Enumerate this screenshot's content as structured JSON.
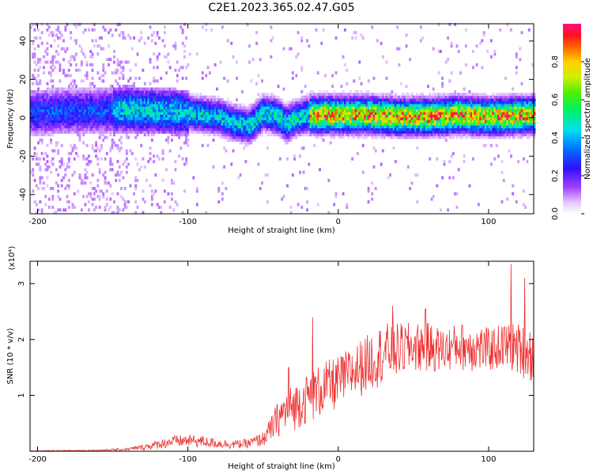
{
  "title": "C2E1.2023.365.02.47.G05",
  "chart_data": [
    {
      "type": "heatmap",
      "xlabel": "Height of straight line (km)",
      "ylabel": "Frequency (Hz)",
      "xlim": [
        -205,
        130
      ],
      "ylim": [
        -50,
        49
      ],
      "xticks": [
        -200,
        -100,
        0,
        100
      ],
      "yticks": [
        -40,
        -20,
        0,
        20,
        40
      ],
      "colorbar": {
        "label": "Normalized spectral amplitude",
        "range": [
          0,
          1
        ],
        "ticks": [
          0.0,
          0.2,
          0.4,
          0.6,
          0.8
        ]
      },
      "ridge": {
        "x": [
          -205,
          -180,
          -160,
          -140,
          -120,
          -100,
          -90,
          -80,
          -70,
          -60,
          -50,
          -40,
          -35,
          -30,
          -20,
          -10,
          0,
          20,
          40,
          60,
          80,
          100,
          130
        ],
        "y": [
          2,
          3,
          3,
          4,
          3,
          2,
          1,
          0,
          -3,
          -5,
          2,
          0,
          -4,
          -1,
          1,
          1,
          1,
          1,
          0,
          0,
          1,
          0,
          1
        ]
      }
    },
    {
      "type": "line",
      "xlabel": "Height of straight line (km)",
      "ylabel": "SNR (10 * v/v)",
      "yscale_label": "(x10⁴)",
      "xlim": [
        -205,
        130
      ],
      "ylim": [
        0,
        3.4
      ],
      "xticks": [
        -200,
        -100,
        0,
        100
      ],
      "yticks": [
        1,
        2,
        3
      ],
      "color": "#ee3030",
      "envelope": {
        "x": [
          -205,
          -180,
          -160,
          -140,
          -130,
          -120,
          -110,
          -100,
          -90,
          -80,
          -70,
          -60,
          -50,
          -45,
          -40,
          -35,
          -30,
          -20,
          -10,
          0,
          10,
          20,
          30,
          40,
          50,
          60,
          70,
          80,
          90,
          100,
          110,
          120,
          130
        ],
        "lo": [
          0.0,
          0.0,
          0.0,
          0.01,
          0.02,
          0.04,
          0.06,
          0.07,
          0.06,
          0.05,
          0.04,
          0.05,
          0.08,
          0.15,
          0.25,
          0.3,
          0.35,
          0.5,
          0.6,
          0.75,
          0.9,
          1.05,
          1.2,
          1.3,
          1.4,
          1.4,
          1.4,
          1.45,
          1.4,
          1.4,
          1.45,
          1.35,
          1.2
        ],
        "hi": [
          0.01,
          0.02,
          0.03,
          0.06,
          0.12,
          0.2,
          0.28,
          0.3,
          0.28,
          0.22,
          0.2,
          0.22,
          0.35,
          0.6,
          0.9,
          1.1,
          1.2,
          1.4,
          1.6,
          1.7,
          1.9,
          2.1,
          2.3,
          2.3,
          2.3,
          2.3,
          2.2,
          2.3,
          2.3,
          2.2,
          2.3,
          2.3,
          2.2
        ]
      },
      "peaks": [
        {
          "x": -33,
          "y": 1.5
        },
        {
          "x": -17,
          "y": 2.4
        },
        {
          "x": 36,
          "y": 2.6
        },
        {
          "x": 58,
          "y": 2.55
        },
        {
          "x": 115,
          "y": 3.35
        },
        {
          "x": 124,
          "y": 3.1
        }
      ]
    }
  ]
}
